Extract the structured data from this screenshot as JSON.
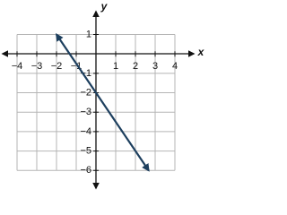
{
  "chart_data": {
    "type": "line",
    "x_label": "x",
    "y_label": "y",
    "x": [
      -2,
      2.67
    ],
    "series": [
      {
        "color": "#1d3f5e",
        "values": [
          1,
          -6
        ]
      }
    ],
    "xlim": [
      -4.5,
      4.5
    ],
    "ylim": [
      -6.8,
      1.9
    ],
    "xticks": [
      {
        "value": -4,
        "label": "−4"
      },
      {
        "value": -3,
        "label": "−3"
      },
      {
        "value": -2,
        "label": "−2"
      },
      {
        "value": -1,
        "label": "−1"
      },
      1,
      2,
      3,
      4
    ],
    "yticks": [
      1,
      {
        "value": -1,
        "label": "−1"
      },
      {
        "value": -2,
        "label": "−2"
      },
      {
        "value": -3,
        "label": "−3"
      },
      {
        "value": -4,
        "label": "−4"
      },
      {
        "value": -5,
        "label": "−5"
      },
      {
        "value": -6,
        "label": "−6"
      }
    ],
    "grid": true
  }
}
